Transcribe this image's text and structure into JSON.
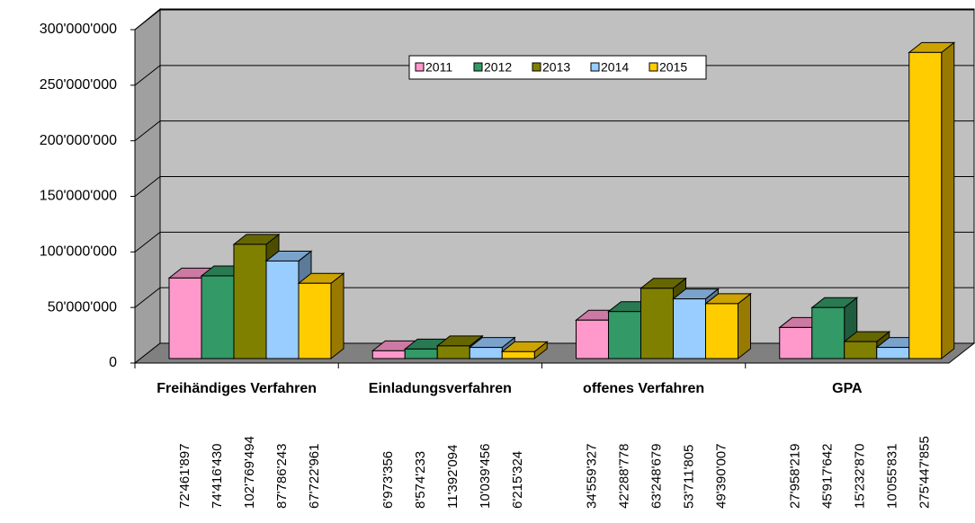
{
  "chart_data": {
    "type": "bar3d",
    "categories": [
      "Freihändiges Verfahren",
      "Einladungsverfahren",
      "offenes Verfahren",
      "GPA"
    ],
    "series": [
      {
        "name": "2011",
        "color": "#ff99cc",
        "values": [
          72461897,
          6973356,
          34559327,
          27958219
        ],
        "value_labels": [
          "72'461'897",
          "6'973'356",
          "34'559'327",
          "27'958'219"
        ]
      },
      {
        "name": "2012",
        "color": "#339966",
        "values": [
          74416430,
          8574233,
          42288778,
          45917642
        ],
        "value_labels": [
          "74'416'430",
          "8'574'233",
          "42'288'778",
          "45'917'642"
        ]
      },
      {
        "name": "2013",
        "color": "#808000",
        "values": [
          102769494,
          11392094,
          63248679,
          15232870
        ],
        "value_labels": [
          "102'769'494",
          "11'392'094",
          "63'248'679",
          "15'232'870"
        ]
      },
      {
        "name": "2014",
        "color": "#99ccff",
        "values": [
          87786243,
          10039456,
          53711805,
          10055831
        ],
        "value_labels": [
          "87'786'243",
          "10'039'456",
          "53'711'805",
          "10'055'831"
        ]
      },
      {
        "name": "2015",
        "color": "#ffcc00",
        "values": [
          67722961,
          6215324,
          49390007,
          275447855
        ],
        "value_labels": [
          "67'722'961",
          "6'215'324",
          "49'390'007",
          "275'447'855"
        ]
      }
    ],
    "ylim": [
      0,
      300000000
    ],
    "yticks": [
      0,
      {
        "value": 50000000,
        "label": "50'000'000"
      },
      {
        "value": 100000000,
        "label": "100'000'000"
      },
      {
        "value": 150000000,
        "label": "150'000'000"
      },
      {
        "value": 200000000,
        "label": "200'000'000"
      },
      {
        "value": 250000000,
        "label": "250'000'000"
      },
      {
        "value": 300000000,
        "label": "300'000'000"
      }
    ],
    "grid": true,
    "legend": "top"
  }
}
